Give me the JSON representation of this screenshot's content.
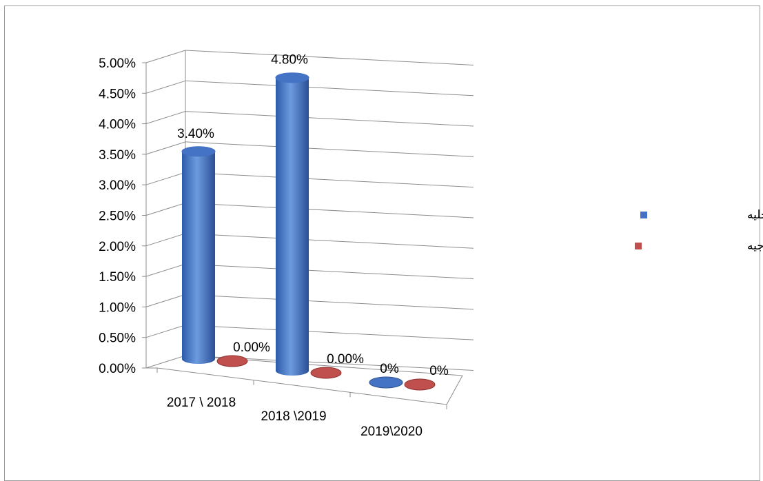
{
  "chart_data": {
    "type": "bar",
    "categories": [
      "2017 \\ 2018",
      "2018 \\2019",
      "2019\\2020"
    ],
    "series": [
      {
        "name": "المؤتمرات الداخليه",
        "color": "#4472c4",
        "values": [
          3.4,
          4.8,
          0
        ],
        "labels": [
          "3.40%",
          "4.80%",
          "0%"
        ]
      },
      {
        "name": "المؤتمرات الخارجيه",
        "color": "#c0504d",
        "values": [
          0,
          0,
          0
        ],
        "labels": [
          "0.00%",
          "0.00%",
          "0%"
        ]
      }
    ],
    "ylim": [
      0,
      5
    ],
    "ytick_labels": [
      "0.00%",
      "0.50%",
      "1.00%",
      "1.50%",
      "2.00%",
      "2.50%",
      "3.00%",
      "3.50%",
      "4.00%",
      "4.50%",
      "5.00%"
    ],
    "bar_shape": "cylinder",
    "three_d": true,
    "grid": true,
    "legend_position": "right"
  }
}
